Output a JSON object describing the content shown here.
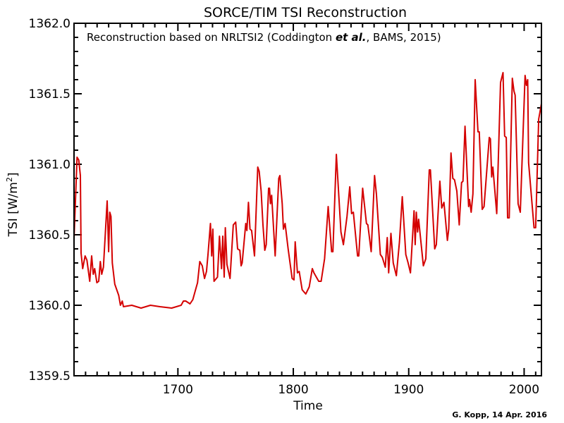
{
  "chart_data": {
    "type": "line",
    "title": "SORCE/TIM TSI Reconstruction",
    "annotation": {
      "prefix": "Reconstruction based on NRLTSI2 (Coddington ",
      "emphasis": "et al.",
      "suffix": ", BAMS, 2015)"
    },
    "xlabel": "Time",
    "ylabel": "TSI [W/m",
    "ylabel_superscript": "2",
    "ylabel_suffix": "]",
    "credit": "G. Kopp, 14 Apr. 2016",
    "xlim": [
      1610,
      2015
    ],
    "ylim": [
      1359.5,
      1362.0
    ],
    "xticks": [
      1700,
      1800,
      1900,
      2000
    ],
    "xtick_labels": [
      "1700",
      "1800",
      "1900",
      "2000"
    ],
    "yticks": [
      1359.5,
      1360.0,
      1360.5,
      1361.0,
      1361.5,
      1362.0
    ],
    "ytick_labels": [
      "1359.5",
      "1360.0",
      "1360.5",
      "1361.0",
      "1361.5",
      "1362.0"
    ],
    "x_minor_step": 10,
    "y_minor_step": 0.1,
    "grid": false,
    "line_color": "#d40000",
    "series": [
      {
        "x": [
          1610.0,
          1612.6,
          1614.1,
          1615.5,
          1616.1,
          1617.5,
          1619.6,
          1621.2,
          1623.6,
          1625.3,
          1626.7,
          1627.9,
          1629.8,
          1631.4,
          1632.8,
          1634.0,
          1635.5,
          1638.7,
          1640.0,
          1641.0,
          1642.0,
          1643.2,
          1645.3,
          1648.7,
          1650.2,
          1651.8,
          1652.8,
          1660.0,
          1668.1,
          1676.2,
          1684.4,
          1694.6,
          1702.8,
          1704.8,
          1706.8,
          1710.5,
          1712.9,
          1716.0,
          1717.0,
          1719.0,
          1721.1,
          1723.1,
          1724.8,
          1726.2,
          1728.2,
          1729.3,
          1730.3,
          1731.3,
          1734.3,
          1736.0,
          1737.8,
          1738.9,
          1740.1,
          1741.1,
          1742.5,
          1745.2,
          1748.0,
          1750.1,
          1751.7,
          1753.7,
          1754.8,
          1755.7,
          1758.8,
          1759.8,
          1761.1,
          1762.5,
          1763.9,
          1766.4,
          1769.2,
          1770.4,
          1772.1,
          1773.7,
          1775.3,
          1776.5,
          1778.6,
          1779.4,
          1780.2,
          1781.2,
          1784.3,
          1787.4,
          1788.4,
          1790.4,
          1791.4,
          1792.9,
          1795.5,
          1799.0,
          1800.6,
          1801.6,
          1803.6,
          1805.1,
          1807.7,
          1810.8,
          1813.8,
          1816.5,
          1817.9,
          1822.0,
          1824.1,
          1827.1,
          1830.2,
          1833.2,
          1834.3,
          1837.3,
          1841.3,
          1843.4,
          1846.5,
          1848.9,
          1850.5,
          1852.0,
          1855.7,
          1856.7,
          1860.1,
          1863.4,
          1864.6,
          1867.5,
          1870.4,
          1872.0,
          1875.4,
          1877.1,
          1879.7,
          1881.4,
          1882.6,
          1884.6,
          1886.6,
          1889.3,
          1892.0,
          1894.4,
          1897.5,
          1899.5,
          1901.5,
          1904.6,
          1905.6,
          1906.6,
          1907.7,
          1908.6,
          1912.7,
          1914.8,
          1917.8,
          1918.8,
          1922.5,
          1923.9,
          1927.0,
          1928.6,
          1930.5,
          1933.5,
          1934.7,
          1936.6,
          1938.2,
          1939.7,
          1941.7,
          1943.8,
          1945.8,
          1947.0,
          1948.8,
          1951.9,
          1952.7,
          1954.1,
          1955.6,
          1957.6,
          1960.0,
          1961.1,
          1963.7,
          1965.3,
          1969.8,
          1970.8,
          1971.9,
          1972.9,
          1976.3,
          1979.6,
          1981.7,
          1983.1,
          1984.5,
          1985.7,
          1987.1,
          1989.8,
          1991.2,
          1992.2,
          1994.8,
          1996.7,
          2000.8,
          2002.0,
          2003.1,
          2003.9,
          2008.6,
          2010.0,
          2012.6,
          2015.0
        ],
        "y": [
          1360.47,
          1361.05,
          1361.03,
          1360.92,
          1360.37,
          1360.26,
          1360.35,
          1360.32,
          1360.17,
          1360.35,
          1360.22,
          1360.26,
          1360.16,
          1360.17,
          1360.31,
          1360.22,
          1360.27,
          1360.74,
          1360.38,
          1360.66,
          1360.63,
          1360.3,
          1360.15,
          1360.07,
          1360.0,
          1360.03,
          1359.99,
          1360.0,
          1359.98,
          1360.0,
          1359.99,
          1359.98,
          1360.0,
          1360.03,
          1360.03,
          1360.01,
          1360.04,
          1360.13,
          1360.16,
          1360.31,
          1360.28,
          1360.19,
          1360.24,
          1360.37,
          1360.58,
          1360.35,
          1360.54,
          1360.17,
          1360.2,
          1360.49,
          1360.26,
          1360.49,
          1360.2,
          1360.55,
          1360.29,
          1360.19,
          1360.57,
          1360.59,
          1360.4,
          1360.39,
          1360.28,
          1360.3,
          1360.58,
          1360.53,
          1360.73,
          1360.54,
          1360.53,
          1360.35,
          1360.98,
          1360.95,
          1360.81,
          1360.57,
          1360.39,
          1360.43,
          1360.83,
          1360.83,
          1360.72,
          1360.78,
          1360.35,
          1360.9,
          1360.92,
          1360.72,
          1360.54,
          1360.58,
          1360.4,
          1360.19,
          1360.18,
          1360.45,
          1360.23,
          1360.24,
          1360.11,
          1360.08,
          1360.13,
          1360.26,
          1360.23,
          1360.17,
          1360.17,
          1360.33,
          1360.7,
          1360.38,
          1360.38,
          1361.07,
          1360.52,
          1360.43,
          1360.63,
          1360.84,
          1360.65,
          1360.66,
          1360.35,
          1360.35,
          1360.83,
          1360.58,
          1360.57,
          1360.38,
          1360.92,
          1360.79,
          1360.36,
          1360.34,
          1360.27,
          1360.48,
          1360.23,
          1360.51,
          1360.3,
          1360.21,
          1360.45,
          1360.77,
          1360.36,
          1360.3,
          1360.23,
          1360.67,
          1360.43,
          1360.66,
          1360.52,
          1360.61,
          1360.28,
          1360.33,
          1360.96,
          1360.96,
          1360.4,
          1360.43,
          1360.88,
          1360.69,
          1360.73,
          1360.46,
          1360.54,
          1361.08,
          1360.9,
          1360.89,
          1360.81,
          1360.57,
          1360.87,
          1360.88,
          1361.27,
          1360.7,
          1360.75,
          1360.66,
          1360.79,
          1361.6,
          1361.23,
          1361.23,
          1360.68,
          1360.7,
          1361.19,
          1361.18,
          1360.91,
          1360.98,
          1360.65,
          1361.58,
          1361.65,
          1361.2,
          1361.19,
          1360.62,
          1360.62,
          1361.61,
          1361.52,
          1361.49,
          1360.72,
          1360.66,
          1361.63,
          1361.56,
          1361.6,
          1361.01,
          1360.55,
          1360.55,
          1361.32,
          1361.43
        ]
      }
    ]
  }
}
